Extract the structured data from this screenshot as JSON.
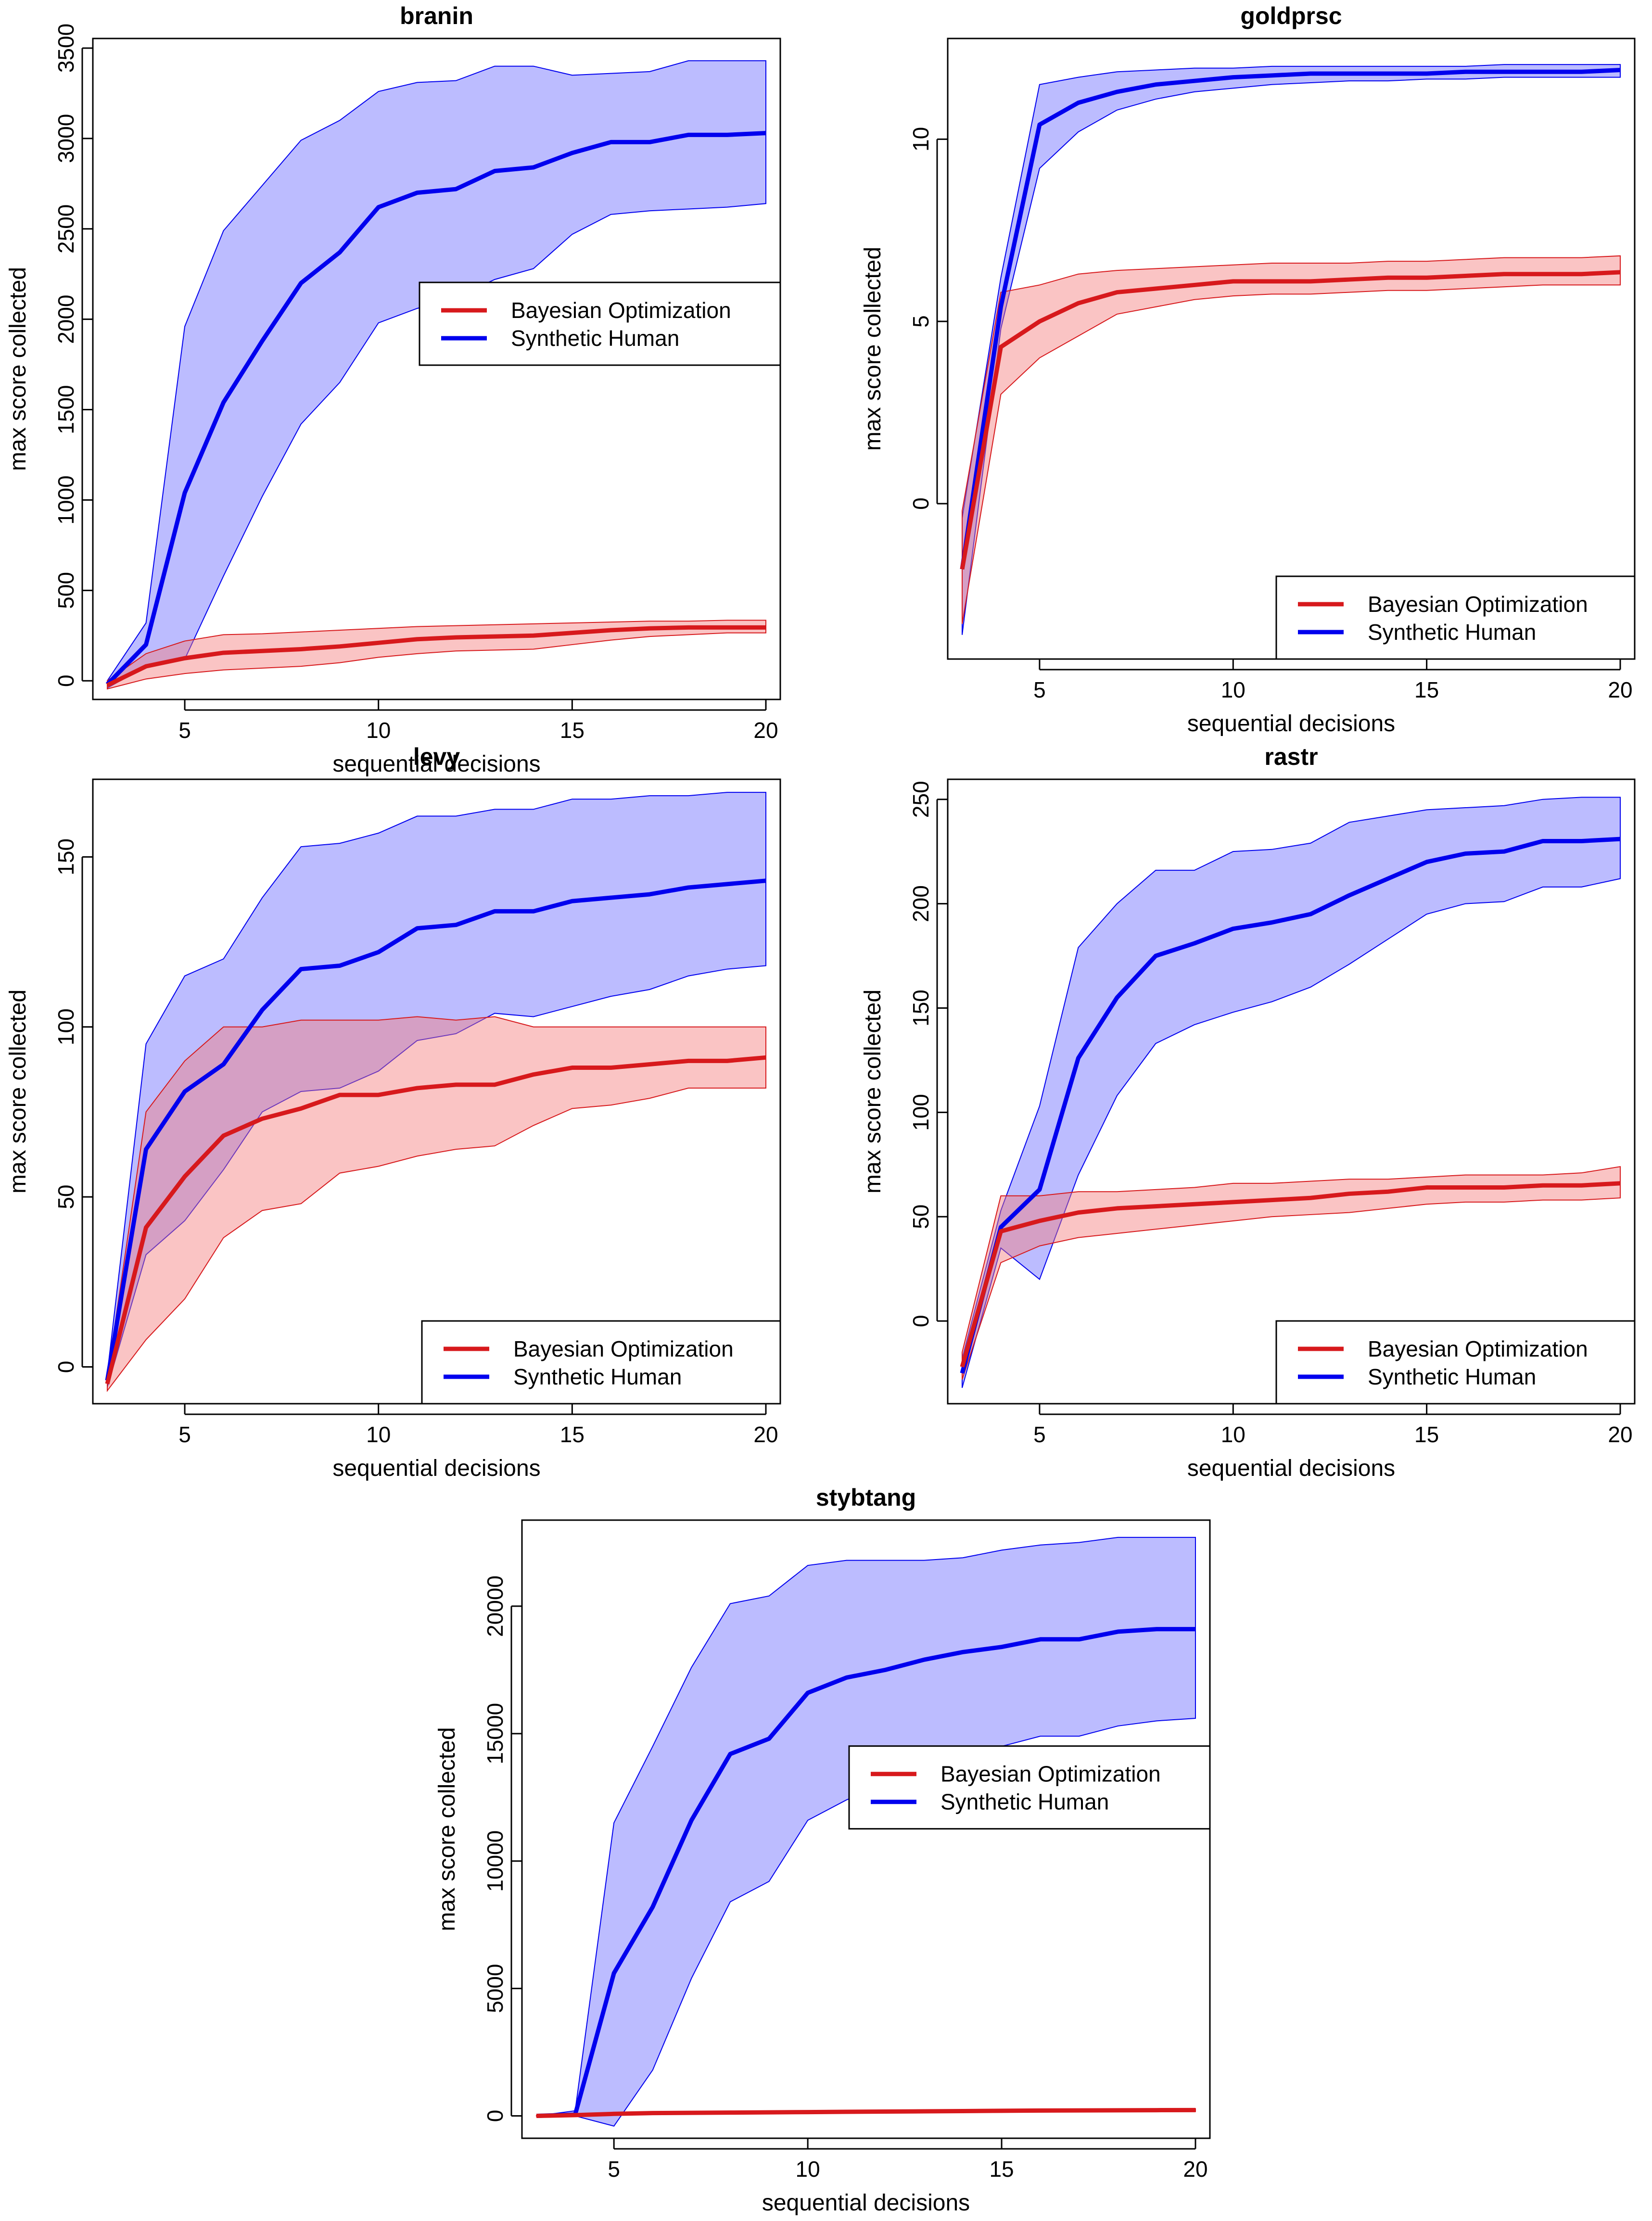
{
  "chart_data": [
    {
      "type": "line",
      "title": "branin",
      "xlabel": "sequential decisions",
      "ylabel": "max score collected",
      "xlim": [
        3,
        20
      ],
      "ylim": [
        -50,
        3500
      ],
      "xticks": [
        5,
        10,
        15,
        20
      ],
      "yticks": [
        0,
        500,
        1000,
        1500,
        2000,
        2500,
        3000,
        3500
      ],
      "legend_position": "center-right",
      "x": [
        3,
        4,
        5,
        6,
        7,
        8,
        9,
        10,
        11,
        12,
        13,
        14,
        15,
        16,
        17,
        18,
        19,
        20
      ],
      "series": [
        {
          "name": "Bayesian Optimization",
          "color": "#d7191c",
          "band_color": "#f47c7c",
          "mean": [
            -25,
            80,
            125,
            155,
            165,
            175,
            190,
            210,
            230,
            240,
            245,
            250,
            265,
            280,
            290,
            295,
            295,
            295
          ],
          "lower": [
            -45,
            10,
            40,
            60,
            70,
            80,
            100,
            130,
            150,
            165,
            170,
            175,
            200,
            225,
            245,
            255,
            265,
            265
          ],
          "upper": [
            0,
            150,
            220,
            255,
            260,
            270,
            280,
            290,
            300,
            305,
            310,
            315,
            320,
            325,
            330,
            330,
            335,
            335
          ]
        },
        {
          "name": "Synthetic Human",
          "color": "#0000ee",
          "band_color": "#6a6aff",
          "mean": [
            -20,
            200,
            1040,
            1540,
            1880,
            2200,
            2370,
            2620,
            2700,
            2720,
            2820,
            2840,
            2920,
            2980,
            2980,
            3020,
            3020,
            3030
          ],
          "lower": [
            -40,
            80,
            120,
            580,
            1020,
            1420,
            1650,
            1980,
            2060,
            2120,
            2220,
            2280,
            2470,
            2580,
            2600,
            2610,
            2620,
            2640
          ],
          "upper": [
            0,
            320,
            1960,
            2490,
            2740,
            2990,
            3100,
            3260,
            3310,
            3320,
            3400,
            3400,
            3350,
            3360,
            3370,
            3430,
            3430,
            3430
          ]
        }
      ]
    },
    {
      "type": "line",
      "title": "goldprsc",
      "xlabel": "sequential decisions",
      "ylabel": "max score collected",
      "xlim": [
        3,
        20
      ],
      "ylim": [
        -4,
        12.5
      ],
      "xticks": [
        5,
        10,
        15,
        20
      ],
      "yticks": [
        0,
        5,
        10
      ],
      "legend_position": "bottom-right",
      "x": [
        3,
        4,
        5,
        6,
        7,
        8,
        9,
        10,
        11,
        12,
        13,
        14,
        15,
        16,
        17,
        18,
        19,
        20
      ],
      "series": [
        {
          "name": "Bayesian Optimization",
          "color": "#d7191c",
          "band_color": "#f47c7c",
          "mean": [
            -1.8,
            4.3,
            5.0,
            5.5,
            5.8,
            5.9,
            6.0,
            6.1,
            6.1,
            6.1,
            6.15,
            6.2,
            6.2,
            6.25,
            6.3,
            6.3,
            6.3,
            6.35
          ],
          "lower": [
            -3.3,
            3.0,
            4.0,
            4.6,
            5.2,
            5.4,
            5.6,
            5.7,
            5.75,
            5.75,
            5.8,
            5.85,
            5.85,
            5.9,
            5.95,
            6.0,
            6.0,
            6.0
          ],
          "upper": [
            -0.2,
            5.8,
            6.0,
            6.3,
            6.4,
            6.45,
            6.5,
            6.55,
            6.6,
            6.6,
            6.6,
            6.65,
            6.65,
            6.7,
            6.75,
            6.75,
            6.75,
            6.8
          ]
        },
        {
          "name": "Synthetic Human",
          "color": "#0000ee",
          "band_color": "#6a6aff",
          "mean": [
            -1.8,
            5.4,
            10.4,
            11.0,
            11.3,
            11.5,
            11.6,
            11.7,
            11.75,
            11.8,
            11.8,
            11.8,
            11.8,
            11.85,
            11.85,
            11.85,
            11.85,
            11.9
          ],
          "lower": [
            -3.6,
            4.8,
            9.2,
            10.2,
            10.8,
            11.1,
            11.3,
            11.4,
            11.5,
            11.55,
            11.6,
            11.6,
            11.65,
            11.65,
            11.7,
            11.7,
            11.7,
            11.7
          ],
          "upper": [
            -0.4,
            6.2,
            11.5,
            11.7,
            11.85,
            11.9,
            11.95,
            11.95,
            12.0,
            12.0,
            12.0,
            12.0,
            12.0,
            12.0,
            12.05,
            12.05,
            12.05,
            12.05
          ]
        }
      ]
    },
    {
      "type": "line",
      "title": "levy",
      "xlabel": "sequential decisions",
      "ylabel": "max score collected",
      "xlim": [
        3,
        20
      ],
      "ylim": [
        -8,
        170
      ],
      "xticks": [
        5,
        10,
        15,
        20
      ],
      "yticks": [
        0,
        50,
        100,
        150
      ],
      "legend_position": "bottom-right",
      "x": [
        3,
        4,
        5,
        6,
        7,
        8,
        9,
        10,
        11,
        12,
        13,
        14,
        15,
        16,
        17,
        18,
        19,
        20
      ],
      "series": [
        {
          "name": "Bayesian Optimization",
          "color": "#d7191c",
          "band_color": "#f47c7c",
          "mean": [
            -5,
            41,
            56,
            68,
            73,
            76,
            80,
            80,
            82,
            83,
            83,
            86,
            88,
            88,
            89,
            90,
            90,
            91
          ],
          "lower": [
            -7,
            8,
            20,
            38,
            46,
            48,
            57,
            59,
            62,
            64,
            65,
            71,
            76,
            77,
            79,
            82,
            82,
            82
          ],
          "upper": [
            -3,
            75,
            90,
            100,
            100,
            102,
            102,
            102,
            103,
            102,
            103,
            100,
            100,
            100,
            100,
            100,
            100,
            100
          ]
        },
        {
          "name": "Synthetic Human",
          "color": "#0000ee",
          "band_color": "#6a6aff",
          "mean": [
            -4,
            64,
            81,
            89,
            105,
            117,
            118,
            122,
            129,
            130,
            134,
            134,
            137,
            138,
            139,
            141,
            142,
            143
          ],
          "lower": [
            -6,
            33,
            43,
            58,
            75,
            81,
            82,
            87,
            96,
            98,
            104,
            103,
            106,
            109,
            111,
            115,
            117,
            118
          ],
          "upper": [
            -2,
            95,
            115,
            120,
            138,
            153,
            154,
            157,
            162,
            162,
            164,
            164,
            167,
            167,
            168,
            168,
            169,
            169
          ]
        }
      ]
    },
    {
      "type": "line",
      "title": "rastr",
      "xlabel": "sequential decisions",
      "ylabel": "max score collected",
      "xlim": [
        3,
        20
      ],
      "ylim": [
        -35,
        255
      ],
      "xticks": [
        5,
        10,
        15,
        20
      ],
      "yticks": [
        0,
        50,
        100,
        150,
        200,
        250
      ],
      "legend_position": "bottom-right",
      "x": [
        3,
        4,
        5,
        6,
        7,
        8,
        9,
        10,
        11,
        12,
        13,
        14,
        15,
        16,
        17,
        18,
        19,
        20
      ],
      "series": [
        {
          "name": "Bayesian Optimization",
          "color": "#d7191c",
          "band_color": "#f47c7c",
          "mean": [
            -22,
            43,
            48,
            52,
            54,
            55,
            56,
            57,
            58,
            59,
            61,
            62,
            64,
            64,
            64,
            65,
            65,
            66
          ],
          "lower": [
            -28,
            28,
            36,
            40,
            42,
            44,
            46,
            48,
            50,
            51,
            52,
            54,
            56,
            57,
            57,
            58,
            58,
            59
          ],
          "upper": [
            -15,
            60,
            60,
            62,
            62,
            63,
            64,
            66,
            66,
            67,
            68,
            68,
            69,
            70,
            70,
            70,
            71,
            74
          ]
        },
        {
          "name": "Synthetic Human",
          "color": "#0000ee",
          "band_color": "#6a6aff",
          "mean": [
            -25,
            45,
            63,
            126,
            155,
            175,
            181,
            188,
            191,
            195,
            204,
            212,
            220,
            224,
            225,
            230,
            230,
            231
          ],
          "lower": [
            -32,
            35,
            20,
            70,
            108,
            133,
            142,
            148,
            153,
            160,
            171,
            183,
            195,
            200,
            201,
            208,
            208,
            212
          ],
          "upper": [
            -18,
            53,
            103,
            179,
            200,
            216,
            216,
            225,
            226,
            229,
            239,
            242,
            245,
            246,
            247,
            250,
            251,
            251
          ]
        }
      ]
    },
    {
      "type": "line",
      "title": "stybtang",
      "xlabel": "sequential decisions",
      "ylabel": "max score collected",
      "xlim": [
        3,
        20
      ],
      "ylim": [
        -500,
        23000
      ],
      "xticks": [
        5,
        10,
        15,
        20
      ],
      "yticks": [
        0,
        5000,
        10000,
        15000,
        20000
      ],
      "legend_position": "center-right",
      "x": [
        3,
        4,
        5,
        6,
        7,
        8,
        9,
        10,
        11,
        12,
        13,
        14,
        15,
        16,
        17,
        18,
        19,
        20
      ],
      "series": [
        {
          "name": "Bayesian Optimization",
          "color": "#d7191c",
          "band_color": "#f47c7c",
          "mean": [
            0,
            30,
            80,
            110,
            120,
            130,
            140,
            150,
            160,
            170,
            180,
            190,
            200,
            210,
            215,
            220,
            225,
            230
          ],
          "lower": [
            -10,
            10,
            50,
            70,
            80,
            90,
            100,
            110,
            120,
            125,
            130,
            135,
            140,
            150,
            155,
            160,
            165,
            170
          ],
          "upper": [
            10,
            60,
            120,
            150,
            160,
            170,
            180,
            200,
            210,
            220,
            230,
            240,
            250,
            260,
            265,
            270,
            275,
            280
          ]
        },
        {
          "name": "Synthetic Human",
          "color": "#0000ee",
          "band_color": "#6a6aff",
          "mean": [
            0,
            50,
            5600,
            8200,
            11600,
            14200,
            14800,
            16600,
            17200,
            17500,
            17900,
            18200,
            18400,
            18700,
            18700,
            19000,
            19100,
            19100
          ],
          "lower": [
            0,
            0,
            -400,
            1800,
            5400,
            8400,
            9200,
            11600,
            12400,
            13000,
            13900,
            14400,
            14500,
            14900,
            14900,
            15300,
            15500,
            15600
          ],
          "upper": [
            0,
            200,
            11500,
            14500,
            17600,
            20100,
            20400,
            21600,
            21800,
            21800,
            21800,
            21900,
            22200,
            22400,
            22500,
            22700,
            22700,
            22700
          ]
        }
      ]
    }
  ]
}
